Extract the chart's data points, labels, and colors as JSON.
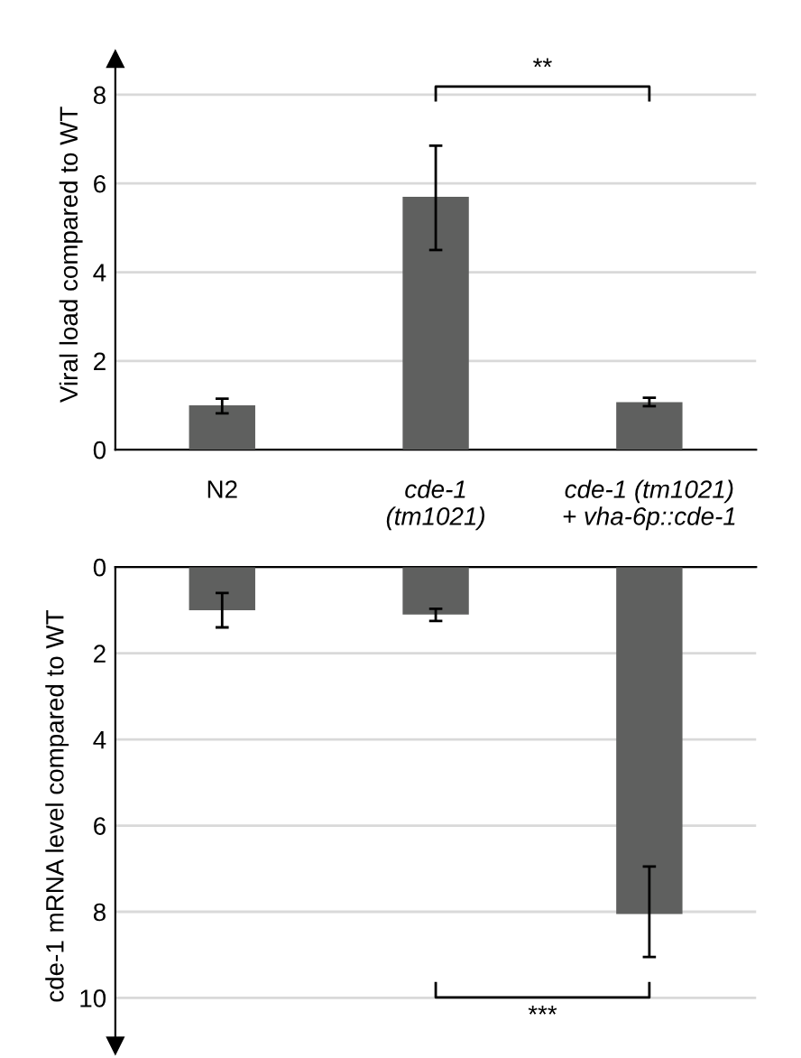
{
  "chart_data": [
    {
      "type": "bar",
      "ylabel": "Viral load compared to WT",
      "categories": [
        "N2",
        "cde-1\n(tm1021)",
        "cde-1 (tm1021)\n+ vha-6p::cde-1"
      ],
      "series": [
        {
          "color": "#5f605f",
          "values": [
            1.0,
            5.7,
            1.07
          ],
          "errors": [
            [
              0.82,
              1.15
            ],
            [
              4.5,
              6.85
            ],
            [
              0.98,
              1.17
            ]
          ]
        }
      ],
      "ylim": [
        0,
        8.8
      ],
      "yticks": [
        0,
        2,
        4,
        6,
        8
      ],
      "grid": "y",
      "annotations": [
        "**"
      ]
    },
    {
      "type": "bar",
      "ylabel": "cde-1 mRNA level compared to WT",
      "categories": [
        null,
        null,
        null
      ],
      "series": [
        {
          "color": "#5f605f",
          "values": [
            1.0,
            1.1,
            8.05
          ],
          "errors": [
            [
              0.6,
              1.4
            ],
            [
              0.97,
              1.25
            ],
            [
              6.95,
              9.05
            ]
          ]
        }
      ],
      "ylim": [
        11.1,
        0
      ],
      "yticks": [
        0,
        2,
        4,
        6,
        8,
        10
      ],
      "grid": "y",
      "tick_labels": "y",
      "annotations": [
        "***"
      ]
    }
  ]
}
